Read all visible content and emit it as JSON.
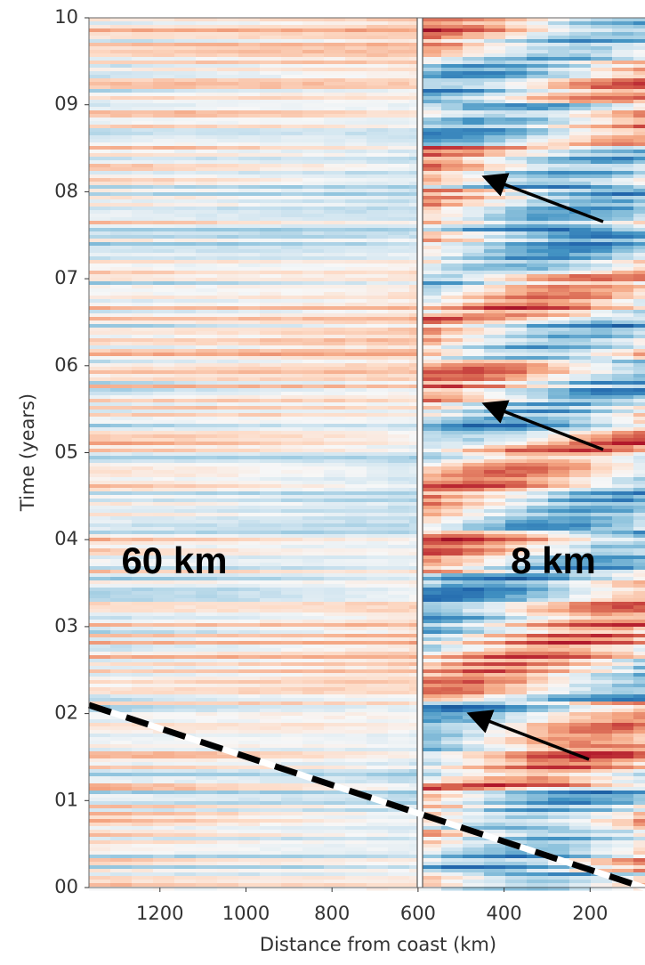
{
  "chart_data": {
    "type": "heatmap",
    "xlabel": "Distance from coast (km)",
    "ylabel": "Time (years)",
    "xlim": [
      1365,
      0
    ],
    "ylim": [
      0,
      10
    ],
    "xticks": [
      1200,
      1000,
      800,
      600,
      400,
      200
    ],
    "yticks": [
      {
        "value": 0,
        "label": "00"
      },
      {
        "value": 1,
        "label": "01"
      },
      {
        "value": 2,
        "label": "02"
      },
      {
        "value": 3,
        "label": "03"
      },
      {
        "value": 4,
        "label": "04"
      },
      {
        "value": 5,
        "label": "05"
      },
      {
        "value": 6,
        "label": "06"
      },
      {
        "value": 7,
        "label": "07"
      },
      {
        "value": 8,
        "label": "08"
      },
      {
        "value": 9,
        "label": "09"
      },
      {
        "value": 10,
        "label": "10"
      }
    ],
    "annotations": [
      "60 km",
      "8 km"
    ]
  }
}
